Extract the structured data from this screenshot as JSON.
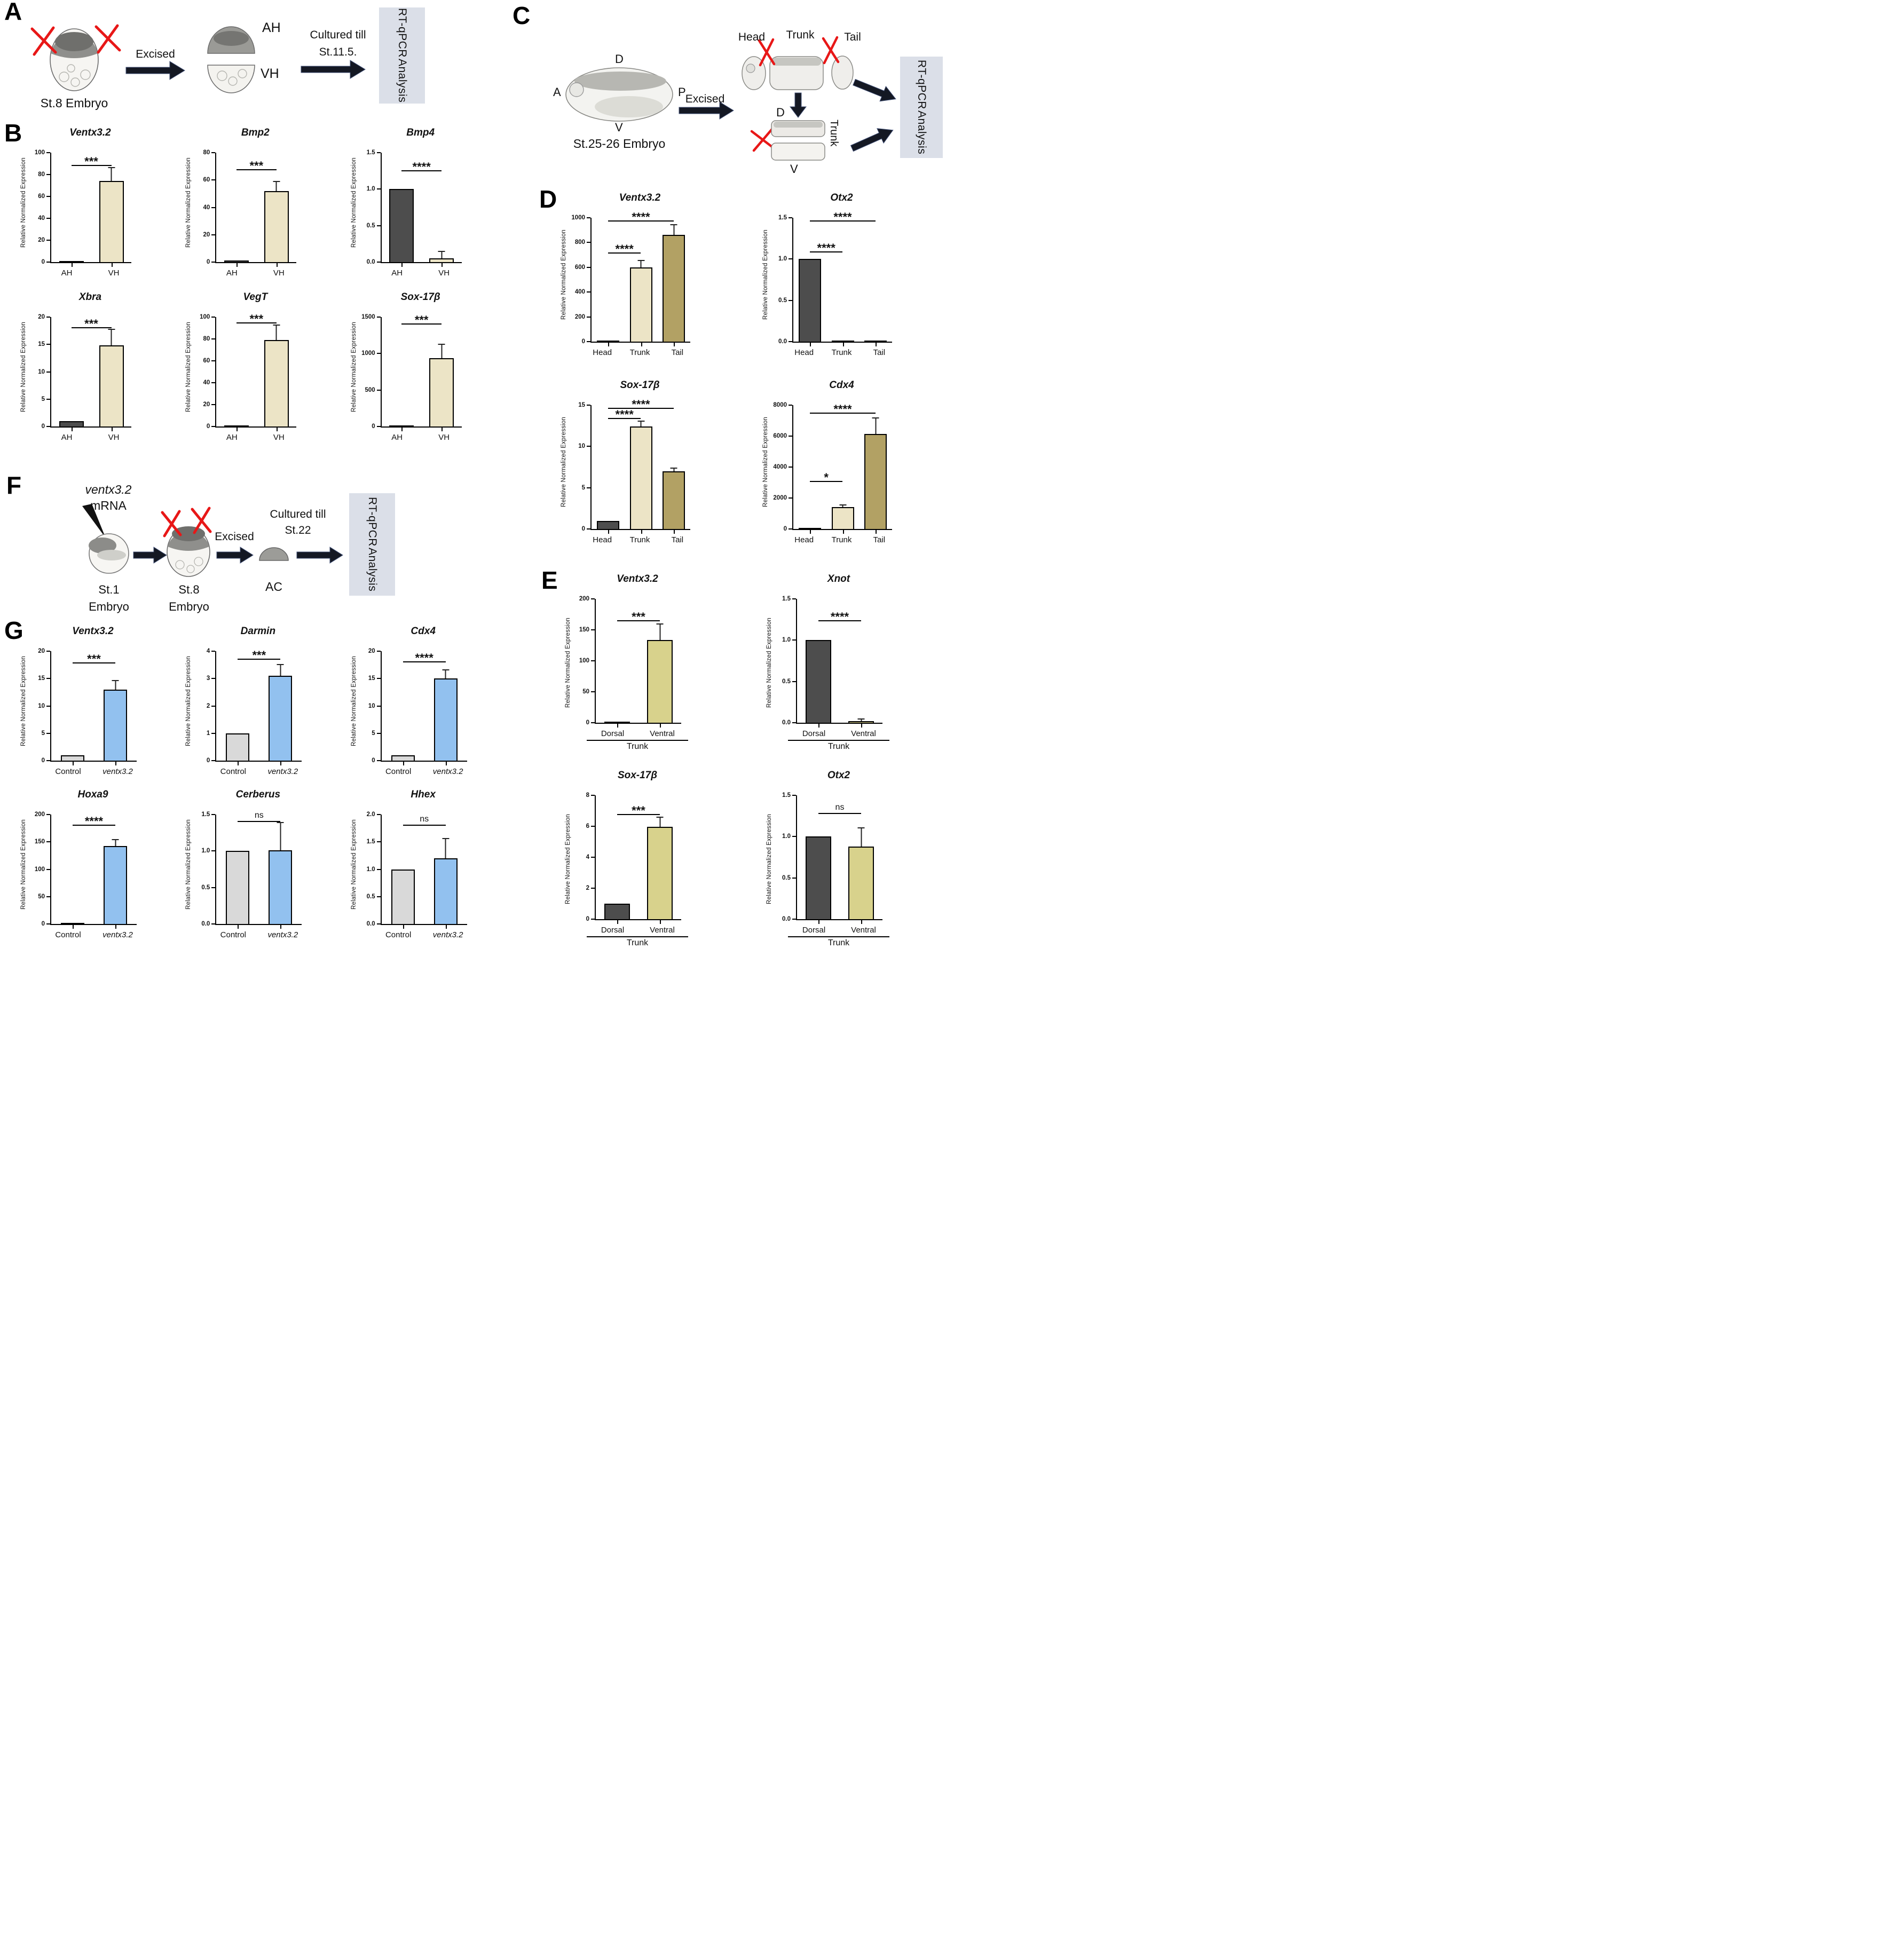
{
  "colors": {
    "dark_bar": "#4d4d4d",
    "cream_bar": "#ece4c6",
    "khaki_bar": "#b2a164",
    "olive_bar": "#d8d28c",
    "gray_bar": "#d9d9d9",
    "blue_bar": "#92c1ef",
    "rtqpcr_box_bg": "#dbdfe8",
    "scissors": "#e81717",
    "arrow": "#141823"
  },
  "panels": {
    "A": {
      "label": "A",
      "embryo": "St.8 Embryo",
      "excised": "Excised",
      "ah": "AH",
      "vh": "VH",
      "cultured_1": "Cultured till",
      "cultured_2": "St.11.5.",
      "rtqpcr_1": "RT-qPCR",
      "rtqpcr_2": "Analysis"
    },
    "B": {
      "label": "B"
    },
    "C": {
      "label": "C",
      "d": "D",
      "a": "A",
      "p": "P",
      "v": "V",
      "embryo": "St.25-26 Embryo",
      "excised": "Excised",
      "head": "Head",
      "trunk": "Trunk",
      "tail": "Tail",
      "d2": "D",
      "v2": "V",
      "trunk2": "Trunk",
      "rtqpcr_1": "RT-qPCR",
      "rtqpcr_2": "Analysis"
    },
    "D": {
      "label": "D"
    },
    "E": {
      "label": "E"
    },
    "F": {
      "label": "F",
      "mrna_1": "ventx3.2",
      "mrna_2": "mRNA",
      "st1_1": "St.1",
      "st1_2": "Embryo",
      "st8_1": "St.8",
      "st8_2": "Embryo",
      "excised": "Excised",
      "ac": "AC",
      "cultured_1": "Cultured till",
      "cultured_2": "St.22",
      "rtqpcr_1": "RT-qPCR",
      "rtqpcr_2": "Analysis"
    },
    "G": {
      "label": "G"
    }
  },
  "chart_data": [
    {
      "type": "bar",
      "panel": "B",
      "title": "Ventx3.2",
      "ylabel": "Relative Normalized Expression",
      "yticks": [
        "0",
        "20",
        "40",
        "60",
        "80",
        "100"
      ],
      "categories": [
        "AH",
        "VH"
      ],
      "values": [
        1,
        74
      ],
      "errors": [
        0,
        12
      ],
      "colors": [
        "#4d4d4d",
        "#ece4c6"
      ],
      "sig": [
        {
          "t": "***",
          "a": 0,
          "b": 1,
          "y": 0.88
        }
      ]
    },
    {
      "type": "bar",
      "panel": "B",
      "title": "Bmp2",
      "ylabel": "Relative Normalized Expression",
      "yticks": [
        "0",
        "20",
        "40",
        "60",
        "80"
      ],
      "categories": [
        "AH",
        "VH"
      ],
      "values": [
        1,
        52
      ],
      "errors": [
        0,
        6.5
      ],
      "colors": [
        "#4d4d4d",
        "#ece4c6"
      ],
      "sig": [
        {
          "t": "***",
          "a": 0,
          "b": 1,
          "y": 0.84
        }
      ]
    },
    {
      "type": "bar",
      "panel": "B",
      "title": "Bmp4",
      "ylabel": "Relative Normalized Expression",
      "yticks": [
        "0.0",
        "0.5",
        "1.0",
        "1.5"
      ],
      "categories": [
        "AH",
        "VH"
      ],
      "values": [
        1.0,
        0.05
      ],
      "errors": [
        0,
        0.09
      ],
      "colors": [
        "#4d4d4d",
        "#ece4c6"
      ],
      "sig": [
        {
          "t": "****",
          "a": 0,
          "b": 1,
          "y": 0.83
        }
      ]
    },
    {
      "type": "bar",
      "panel": "B",
      "title": "Xbra",
      "ylabel": "Relative Normalized Expression",
      "yticks": [
        "0",
        "5",
        "10",
        "15",
        "20"
      ],
      "categories": [
        "AH",
        "VH"
      ],
      "values": [
        1,
        14.8
      ],
      "errors": [
        0,
        2.9
      ],
      "colors": [
        "#4d4d4d",
        "#ece4c6"
      ],
      "sig": [
        {
          "t": "***",
          "a": 0,
          "b": 1,
          "y": 0.9
        }
      ]
    },
    {
      "type": "bar",
      "panel": "B",
      "title": "VegT",
      "ylabel": "Relative Normalized Expression",
      "yticks": [
        "0",
        "20",
        "40",
        "60",
        "80",
        "100"
      ],
      "categories": [
        "AH",
        "VH"
      ],
      "values": [
        1,
        79
      ],
      "errors": [
        0,
        13
      ],
      "colors": [
        "#4d4d4d",
        "#ece4c6"
      ],
      "sig": [
        {
          "t": "***",
          "a": 0,
          "b": 1,
          "y": 0.94
        }
      ]
    },
    {
      "type": "bar",
      "panel": "B",
      "title": "Sox-17β",
      "ylabel": "Relative Normalized Expression",
      "yticks": [
        "0",
        "500",
        "1000",
        "1500"
      ],
      "categories": [
        "AH",
        "VH"
      ],
      "values": [
        1,
        940
      ],
      "errors": [
        0,
        180
      ],
      "colors": [
        "#4d4d4d",
        "#ece4c6"
      ],
      "sig": [
        {
          "t": "***",
          "a": 0,
          "b": 1,
          "y": 0.93
        }
      ]
    },
    {
      "type": "bar",
      "panel": "D",
      "title": "Ventx3.2",
      "ylabel": "Relative Normalized Expression",
      "yticks": [
        "0",
        "200",
        "400",
        "600",
        "800",
        "1000"
      ],
      "categories": [
        "Head",
        "Trunk",
        "Tail"
      ],
      "values": [
        2,
        600,
        860
      ],
      "errors": [
        0,
        50,
        80
      ],
      "colors": [
        "#4d4d4d",
        "#ece4c6",
        "#b2a164"
      ],
      "sig": [
        {
          "t": "****",
          "a": 0,
          "b": 1,
          "y": 0.71
        },
        {
          "t": "****",
          "a": 0,
          "b": 2,
          "y": 0.97
        }
      ]
    },
    {
      "type": "bar",
      "panel": "D",
      "title": "Otx2",
      "ylabel": "Relative Normalized Expression",
      "yticks": [
        "0.0",
        "0.5",
        "1.0",
        "1.5"
      ],
      "categories": [
        "Head",
        "Trunk",
        "Tail"
      ],
      "values": [
        1.0,
        0.01,
        0.01
      ],
      "errors": [
        0,
        0,
        0
      ],
      "colors": [
        "#4d4d4d",
        "#ece4c6",
        "#b2a164"
      ],
      "sig": [
        {
          "t": "****",
          "a": 0,
          "b": 1,
          "y": 0.72
        },
        {
          "t": "****",
          "a": 0,
          "b": 2,
          "y": 0.97
        }
      ]
    },
    {
      "type": "bar",
      "panel": "D",
      "title": "Sox-17β",
      "ylabel": "Relative Normalized Expression",
      "yticks": [
        "0",
        "5",
        "10",
        "15"
      ],
      "categories": [
        "Head",
        "Trunk",
        "Tail"
      ],
      "values": [
        1,
        12.4,
        7.0
      ],
      "errors": [
        0,
        0.6,
        0.3
      ],
      "colors": [
        "#4d4d4d",
        "#ece4c6",
        "#b2a164"
      ],
      "sig": [
        {
          "t": "****",
          "a": 0,
          "b": 1,
          "y": 0.89
        },
        {
          "t": "****",
          "a": 0,
          "b": 2,
          "y": 0.97
        }
      ]
    },
    {
      "type": "bar",
      "panel": "D",
      "title": "Cdx4",
      "ylabel": "Relative Normalized Expression",
      "yticks": [
        "0",
        "2000",
        "4000",
        "6000",
        "8000"
      ],
      "categories": [
        "Head",
        "Trunk",
        "Tail"
      ],
      "values": [
        5,
        1400,
        6150
      ],
      "errors": [
        0,
        120,
        1000
      ],
      "colors": [
        "#4d4d4d",
        "#ece4c6",
        "#b2a164"
      ],
      "sig": [
        {
          "t": "*",
          "a": 0,
          "b": 1,
          "y": 0.38
        },
        {
          "t": "****",
          "a": 0,
          "b": 2,
          "y": 0.93
        }
      ]
    },
    {
      "type": "bar",
      "panel": "E",
      "title": "Ventx3.2",
      "ylabel": "Relative Normalized Expression",
      "yticks": [
        "0",
        "50",
        "100",
        "150",
        "200"
      ],
      "categories": [
        "Dorsal",
        "Ventral"
      ],
      "values": [
        1,
        134
      ],
      "errors": [
        0,
        25
      ],
      "colors": [
        "#4d4d4d",
        "#d8d28c"
      ],
      "group": "Trunk",
      "sig": [
        {
          "t": "***",
          "a": 0,
          "b": 1,
          "y": 0.82
        }
      ]
    },
    {
      "type": "bar",
      "panel": "E",
      "title": "Xnot",
      "ylabel": "Relative Normalized Expression",
      "yticks": [
        "0.0",
        "0.5",
        "1.0",
        "1.5"
      ],
      "categories": [
        "Dorsal",
        "Ventral"
      ],
      "values": [
        1.0,
        0.02
      ],
      "errors": [
        0,
        0.02
      ],
      "colors": [
        "#4d4d4d",
        "#d8d28c"
      ],
      "group": "Trunk",
      "sig": [
        {
          "t": "****",
          "a": 0,
          "b": 1,
          "y": 0.82
        }
      ]
    },
    {
      "type": "bar",
      "panel": "E",
      "title": "Sox-17β",
      "ylabel": "Relative Normalized Expression",
      "yticks": [
        "0",
        "2",
        "4",
        "6",
        "8"
      ],
      "categories": [
        "Dorsal",
        "Ventral"
      ],
      "values": [
        1,
        5.95
      ],
      "errors": [
        0,
        0.6
      ],
      "colors": [
        "#4d4d4d",
        "#d8d28c"
      ],
      "group": "Trunk",
      "sig": [
        {
          "t": "***",
          "a": 0,
          "b": 1,
          "y": 0.84
        }
      ]
    },
    {
      "type": "bar",
      "panel": "E",
      "title": "Otx2",
      "ylabel": "Relative Normalized Expression",
      "yticks": [
        "0.0",
        "0.5",
        "1.0",
        "1.5"
      ],
      "categories": [
        "Dorsal",
        "Ventral"
      ],
      "values": [
        1.0,
        0.88
      ],
      "errors": [
        0,
        0.22
      ],
      "colors": [
        "#4d4d4d",
        "#d8d28c"
      ],
      "group": "Trunk",
      "sig": [
        {
          "t": "ns",
          "a": 0,
          "b": 1,
          "y": 0.85
        }
      ]
    },
    {
      "type": "bar",
      "panel": "G",
      "title": "Ventx3.2",
      "ylabel": "Relative Normalized Expression",
      "yticks": [
        "0",
        "5",
        "10",
        "15",
        "20"
      ],
      "categories": [
        "Control",
        "ventx3.2"
      ],
      "italics": [
        false,
        true
      ],
      "values": [
        1,
        13
      ],
      "errors": [
        0,
        1.5
      ],
      "colors": [
        "#d9d9d9",
        "#92c1ef"
      ],
      "sig": [
        {
          "t": "***",
          "a": 0,
          "b": 1,
          "y": 0.89
        }
      ]
    },
    {
      "type": "bar",
      "panel": "G",
      "title": "Darmin",
      "ylabel": "Relative Normalized Expression",
      "yticks": [
        "0",
        "1",
        "2",
        "3",
        "4"
      ],
      "categories": [
        "Control",
        "ventx3.2"
      ],
      "italics": [
        false,
        true
      ],
      "values": [
        1,
        3.1
      ],
      "errors": [
        0,
        0.4
      ],
      "colors": [
        "#d9d9d9",
        "#92c1ef"
      ],
      "sig": [
        {
          "t": "***",
          "a": 0,
          "b": 1,
          "y": 0.92
        }
      ]
    },
    {
      "type": "bar",
      "panel": "G",
      "title": "Cdx4",
      "ylabel": "Relative Normalized Expression",
      "yticks": [
        "0",
        "5",
        "10",
        "15",
        "20"
      ],
      "categories": [
        "Control",
        "ventx3.2"
      ],
      "italics": [
        false,
        true
      ],
      "values": [
        1,
        15
      ],
      "errors": [
        0,
        1.5
      ],
      "colors": [
        "#d9d9d9",
        "#92c1ef"
      ],
      "sig": [
        {
          "t": "****",
          "a": 0,
          "b": 1,
          "y": 0.9
        }
      ]
    },
    {
      "type": "bar",
      "panel": "G",
      "title": "Hoxa9",
      "ylabel": "Relative Normalized Expression",
      "yticks": [
        "0",
        "50",
        "100",
        "150",
        "200"
      ],
      "categories": [
        "Control",
        "ventx3.2"
      ],
      "italics": [
        false,
        true
      ],
      "values": [
        0.5,
        142
      ],
      "errors": [
        0,
        11
      ],
      "colors": [
        "#d9d9d9",
        "#92c1ef"
      ],
      "sig": [
        {
          "t": "****",
          "a": 0,
          "b": 1,
          "y": 0.9
        }
      ]
    },
    {
      "type": "bar",
      "panel": "G",
      "title": "Cerberus",
      "ylabel": "Relative Normalized Expression",
      "yticks": [
        "0.0",
        "0.5",
        "1.0",
        "1.5"
      ],
      "categories": [
        "Control",
        "ventx3.2"
      ],
      "italics": [
        false,
        true
      ],
      "values": [
        1.0,
        1.01
      ],
      "errors": [
        0,
        0.37
      ],
      "colors": [
        "#d9d9d9",
        "#92c1ef"
      ],
      "sig": [
        {
          "t": "ns",
          "a": 0,
          "b": 1,
          "y": 0.93
        }
      ]
    },
    {
      "type": "bar",
      "panel": "G",
      "title": "Hhex",
      "ylabel": "Relative Normalized Expression",
      "yticks": [
        "0.0",
        "0.5",
        "1.0",
        "1.5",
        "2.0"
      ],
      "categories": [
        "Control",
        "ventx3.2"
      ],
      "italics": [
        false,
        true
      ],
      "values": [
        1.0,
        1.2
      ],
      "errors": [
        0,
        0.35
      ],
      "colors": [
        "#d9d9d9",
        "#92c1ef"
      ],
      "sig": [
        {
          "t": "ns",
          "a": 0,
          "b": 1,
          "y": 0.9
        }
      ]
    }
  ]
}
